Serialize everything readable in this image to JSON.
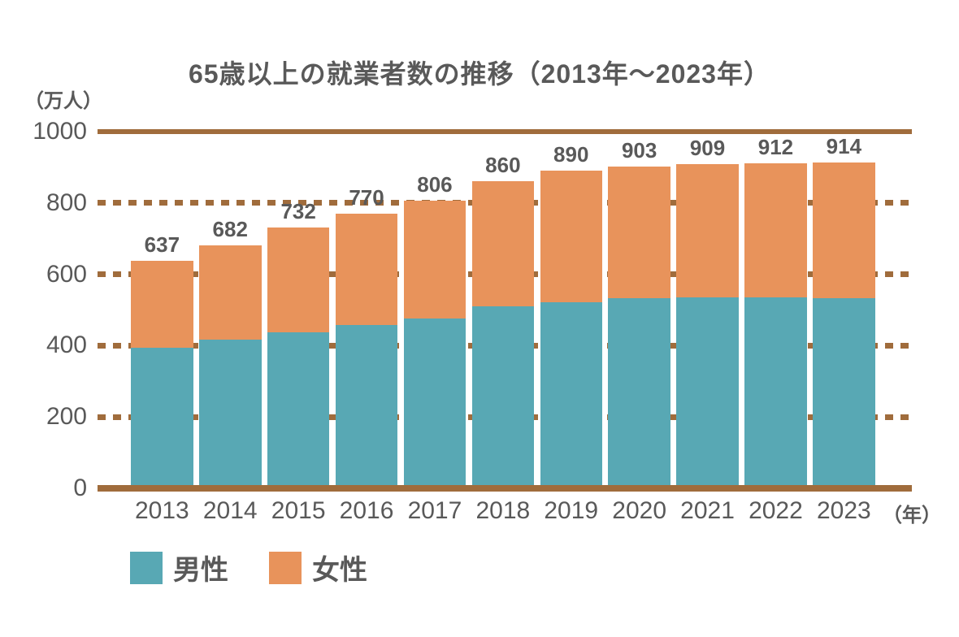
{
  "colors": {
    "male": "#58A8B4",
    "female": "#E8935B",
    "axis": "#A06C3C",
    "text": "#595959",
    "background": "#FFFFFF"
  },
  "chart_data": {
    "type": "bar",
    "stacked": true,
    "title": "65歳以上の就業者数の推移（2013年～2023年）",
    "ylabel": "（万人）",
    "xlabel": "（年）",
    "categories": [
      "2013",
      "2014",
      "2015",
      "2016",
      "2017",
      "2018",
      "2019",
      "2020",
      "2021",
      "2022",
      "2023"
    ],
    "series": [
      {
        "name": "男性",
        "color": "#58A8B4",
        "values": [
          395,
          416,
          438,
          458,
          477,
          510,
          521,
          534,
          535,
          536,
          534
        ]
      },
      {
        "name": "女性",
        "color": "#E8935B",
        "values": [
          242,
          266,
          294,
          312,
          329,
          350,
          369,
          369,
          374,
          376,
          380
        ]
      }
    ],
    "totals": [
      637,
      682,
      732,
      770,
      806,
      860,
      890,
      903,
      909,
      912,
      914
    ],
    "ylim": [
      0,
      1000
    ],
    "yticks": [
      0,
      200,
      400,
      600,
      800,
      1000
    ],
    "gridlines": {
      "solid": [
        0,
        1000
      ],
      "dashed": [
        200,
        400,
        600,
        800
      ]
    },
    "grid": true,
    "legend_position": "bottom-left"
  }
}
